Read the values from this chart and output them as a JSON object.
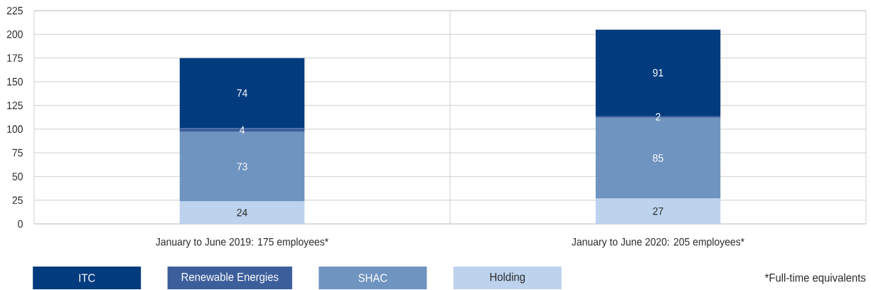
{
  "chart_data": {
    "type": "bar",
    "stacked": true,
    "categories": [
      "January to June 2019: 175 employees*",
      "January to June 2020: 205 employees*"
    ],
    "series": [
      {
        "name": "Holding",
        "color": "#bcd2ed",
        "values": [
          24,
          27
        ]
      },
      {
        "name": "SHAC",
        "color": "#6f94c0",
        "values": [
          73,
          85
        ]
      },
      {
        "name": "Renewable Energies",
        "color": "#3c5f9c",
        "values": [
          4,
          2
        ]
      },
      {
        "name": "ITC",
        "color": "#023b7e",
        "values": [
          74,
          91
        ]
      }
    ],
    "ylim": [
      0,
      225
    ],
    "yticks": [
      0,
      25,
      50,
      75,
      100,
      125,
      150,
      175,
      200,
      225
    ],
    "grid": true,
    "legend": "bottom",
    "data_labels": true,
    "annotations": [
      "*Full-time equivalents"
    ]
  }
}
